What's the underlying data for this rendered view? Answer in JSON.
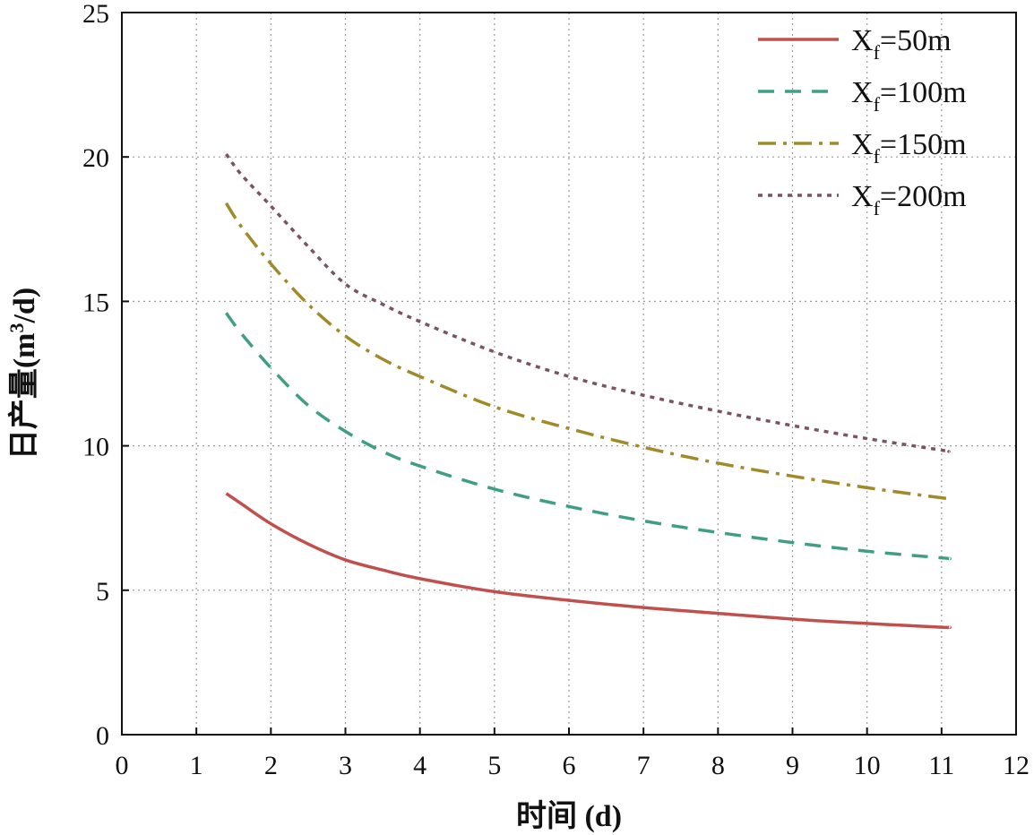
{
  "chart_data": {
    "type": "line",
    "title": "",
    "xlabel": "时间 (d)",
    "ylabel_parts": [
      "日产量(m",
      "3",
      "/d)"
    ],
    "xlim": [
      0,
      12
    ],
    "ylim": [
      0,
      25
    ],
    "xticks": [
      "0",
      "1",
      "2",
      "3",
      "4",
      "5",
      "6",
      "7",
      "8",
      "9",
      "10",
      "11",
      "12"
    ],
    "yticks": [
      "0",
      "5",
      "10",
      "15",
      "20",
      "25"
    ],
    "grid": true,
    "legend_position": "top-right",
    "series": [
      {
        "name_main": "X",
        "name_sub": "f",
        "name_rest": "=50m",
        "color": "#c0504d",
        "dash": "solid",
        "x": [
          1.4,
          1.6,
          2.0,
          2.5,
          3.0,
          3.5,
          4.0,
          5.0,
          6.0,
          7.0,
          8.0,
          9.0,
          10.0,
          11.0,
          11.1
        ],
        "y": [
          8.35,
          8.0,
          7.3,
          6.6,
          6.05,
          5.7,
          5.4,
          4.95,
          4.65,
          4.4,
          4.2,
          4.0,
          3.85,
          3.72,
          3.72
        ]
      },
      {
        "name_main": "X",
        "name_sub": "f",
        "name_rest": "=100m",
        "color": "#3f9e85",
        "dash": "dashed",
        "x": [
          1.4,
          1.6,
          2.0,
          2.5,
          3.0,
          3.5,
          4.0,
          5.0,
          6.0,
          7.0,
          8.0,
          9.0,
          10.0,
          11.0,
          11.1
        ],
        "y": [
          14.6,
          13.9,
          12.7,
          11.4,
          10.5,
          9.8,
          9.3,
          8.5,
          7.9,
          7.4,
          7.0,
          6.65,
          6.35,
          6.12,
          6.1
        ]
      },
      {
        "name_main": "X",
        "name_sub": "f",
        "name_rest": "=150m",
        "color": "#a08a2a",
        "dash": "dashdot",
        "x": [
          1.4,
          1.6,
          2.0,
          2.5,
          3.0,
          3.5,
          4.0,
          5.0,
          6.0,
          7.0,
          8.0,
          9.0,
          10.0,
          11.0,
          11.1
        ],
        "y": [
          18.4,
          17.6,
          16.3,
          14.9,
          13.8,
          13.0,
          12.4,
          11.35,
          10.6,
          9.95,
          9.4,
          8.95,
          8.55,
          8.2,
          8.2
        ]
      },
      {
        "name_main": "X",
        "name_sub": "f",
        "name_rest": "=200m",
        "color": "#7a5560",
        "dash": "dotted",
        "x": [
          1.4,
          1.6,
          2.0,
          2.5,
          3.0,
          3.5,
          4.0,
          5.0,
          6.0,
          7.0,
          8.0,
          9.0,
          10.0,
          11.0,
          11.1
        ],
        "y": [
          20.1,
          19.4,
          18.3,
          16.9,
          15.6,
          14.9,
          14.3,
          13.25,
          12.4,
          11.75,
          11.2,
          10.7,
          10.25,
          9.85,
          9.8
        ]
      }
    ]
  }
}
